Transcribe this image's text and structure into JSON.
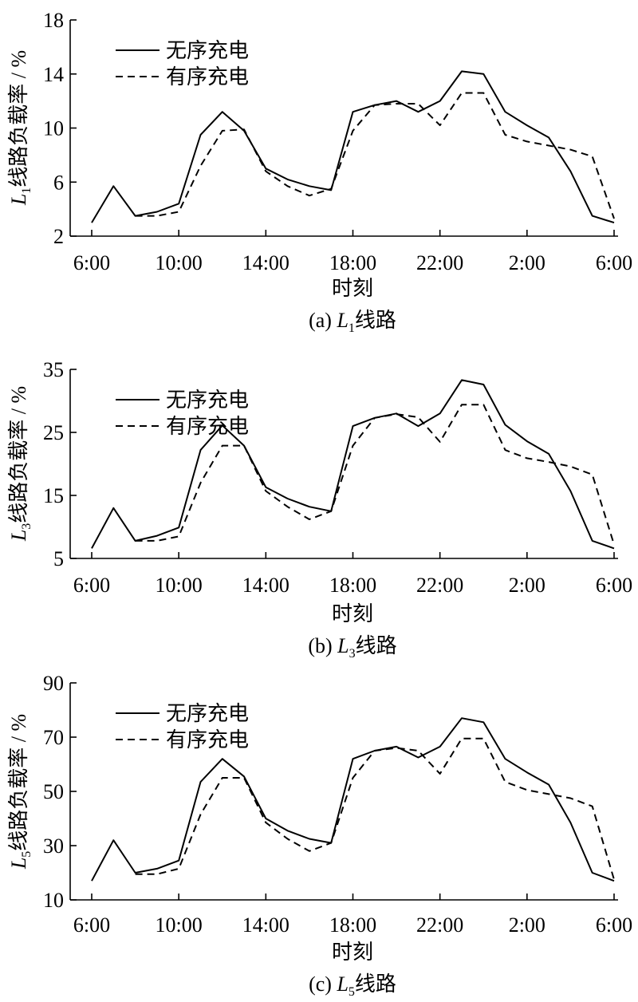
{
  "chart_data": [
    {
      "type": "line",
      "panel_caption_prefix": "(a)",
      "line_italic": "L",
      "line_subscript": "1",
      "panel_caption_suffix": "线路",
      "ylabel_suffix": "线路负载率 / %",
      "xlabel": "时刻",
      "ylim": [
        2,
        18
      ],
      "yticks": [
        "2",
        "6",
        "10",
        "14",
        "18"
      ],
      "xticks": [
        "6:00",
        "10:00",
        "14:00",
        "18:00",
        "22:00",
        "2:00",
        "6:00"
      ],
      "legend": [
        "无序充电",
        "有序充电"
      ],
      "legend_position": "top-left",
      "x": [
        6,
        7,
        8,
        9,
        10,
        11,
        12,
        13,
        14,
        15,
        16,
        17,
        18,
        19,
        20,
        21,
        22,
        23,
        24,
        25,
        26,
        27,
        28,
        29,
        30
      ],
      "series": [
        {
          "name": "无序充电",
          "style": "solid",
          "values": [
            3.0,
            5.7,
            3.5,
            3.8,
            4.4,
            9.5,
            11.2,
            9.8,
            7.0,
            6.2,
            5.7,
            5.4,
            11.2,
            11.7,
            12.0,
            11.2,
            12.0,
            14.2,
            14.0,
            11.2,
            10.2,
            9.3,
            6.8,
            3.5,
            3.0
          ]
        },
        {
          "name": "有序充电",
          "style": "dashed",
          "values": [
            null,
            null,
            3.5,
            3.5,
            3.8,
            7.2,
            9.8,
            9.9,
            6.8,
            5.7,
            5.0,
            5.5,
            9.8,
            11.7,
            11.8,
            11.8,
            10.2,
            12.6,
            12.6,
            9.5,
            9.0,
            8.7,
            8.4,
            7.9,
            3.3
          ]
        }
      ]
    },
    {
      "type": "line",
      "panel_caption_prefix": "(b)",
      "line_italic": "L",
      "line_subscript": "3",
      "panel_caption_suffix": "线路",
      "ylabel_suffix": "线路负载率 / %",
      "xlabel": "时刻",
      "ylim": [
        5,
        35
      ],
      "yticks": [
        "5",
        "15",
        "25",
        "35"
      ],
      "xticks": [
        "6:00",
        "10:00",
        "14:00",
        "18:00",
        "22:00",
        "2:00",
        "6:00"
      ],
      "legend": [
        "无序充电",
        "有序充电"
      ],
      "legend_position": "top-left",
      "x": [
        6,
        7,
        8,
        9,
        10,
        11,
        12,
        13,
        14,
        15,
        16,
        17,
        18,
        19,
        20,
        21,
        22,
        23,
        24,
        25,
        26,
        27,
        28,
        29,
        30
      ],
      "series": [
        {
          "name": "无序充电",
          "style": "solid",
          "values": [
            6.6,
            13.0,
            7.8,
            8.6,
            9.9,
            22.2,
            26.1,
            22.9,
            16.3,
            14.5,
            13.2,
            12.5,
            26.0,
            27.3,
            28.0,
            26.0,
            28.0,
            33.3,
            32.6,
            26.2,
            23.6,
            21.6,
            15.7,
            7.8,
            6.6
          ]
        },
        {
          "name": "有序充电",
          "style": "dashed",
          "values": [
            null,
            null,
            7.8,
            7.8,
            8.5,
            17.0,
            22.9,
            22.9,
            15.7,
            13.2,
            11.2,
            12.5,
            22.9,
            27.3,
            27.9,
            27.4,
            23.5,
            29.4,
            29.4,
            22.2,
            20.9,
            20.3,
            19.6,
            18.3,
            7.2
          ]
        }
      ]
    },
    {
      "type": "line",
      "panel_caption_prefix": "(c)",
      "line_italic": "L",
      "line_subscript": "5",
      "panel_caption_suffix": "线路",
      "ylabel_suffix": "线路负载率 / %",
      "xlabel": "时刻",
      "ylim": [
        10,
        90
      ],
      "yticks": [
        "10",
        "30",
        "50",
        "70",
        "90"
      ],
      "xticks": [
        "6:00",
        "10:00",
        "14:00",
        "18:00",
        "22:00",
        "2:00",
        "6:00"
      ],
      "legend": [
        "无序充电",
        "有序充电"
      ],
      "legend_position": "top-left",
      "x": [
        6,
        7,
        8,
        9,
        10,
        11,
        12,
        13,
        14,
        15,
        16,
        17,
        18,
        19,
        20,
        21,
        22,
        23,
        24,
        25,
        26,
        27,
        28,
        29,
        30
      ],
      "series": [
        {
          "name": "无序充电",
          "style": "solid",
          "values": [
            17.0,
            32.0,
            20.0,
            21.5,
            24.5,
            53.5,
            62.0,
            55.5,
            40.0,
            35.5,
            32.5,
            31.0,
            62.0,
            65.0,
            66.5,
            62.5,
            66.5,
            77.0,
            75.5,
            62.0,
            57.0,
            52.5,
            38.5,
            20.0,
            17.0
          ]
        },
        {
          "name": "有序充电",
          "style": "dashed",
          "values": [
            null,
            null,
            19.5,
            19.5,
            21.5,
            41.5,
            55.0,
            55.0,
            38.5,
            32.5,
            28.0,
            31.0,
            55.0,
            65.0,
            66.0,
            65.0,
            56.5,
            69.5,
            69.5,
            53.5,
            50.5,
            49.0,
            47.5,
            44.5,
            17.5
          ]
        }
      ]
    }
  ]
}
